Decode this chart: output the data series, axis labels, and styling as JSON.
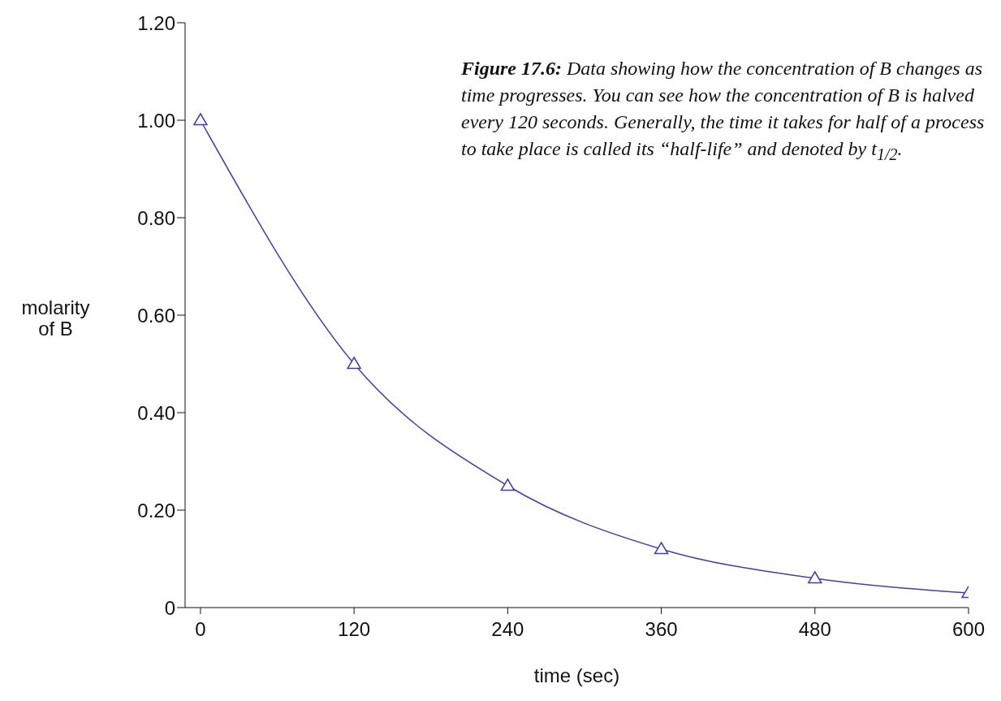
{
  "chart_data": {
    "type": "line",
    "xlabel": "time (sec)",
    "ylabel": "molarity of B",
    "annotations": [
      "Figure 17.6:",
      "Data showing how the concentration of B changes as time progresses.  You can see how the concentration of B is halved every 120 seconds.  Generally, the time it takes for half of a process to take place is called its “half-life” and denoted by t$_{1/2}$."
    ],
    "x": [
      0,
      120,
      240,
      360,
      480,
      600
    ],
    "series": [
      {
        "color": "#3f3fae",
        "values": [
          1.0,
          0.5,
          0.25,
          0.12,
          0.06,
          0.03
        ]
      }
    ],
    "xlim": [
      -12,
      600
    ],
    "xticks": [
      0,
      120,
      240,
      360,
      480,
      600
    ],
    "ylim": [
      0,
      1.2
    ],
    "yticks": [
      0,
      {
        "value": 0.2,
        "label": "0.20"
      },
      {
        "value": 0.4,
        "label": "0.40"
      },
      {
        "value": 0.6,
        "label": "0.60"
      },
      {
        "value": 0.8,
        "label": "0.80"
      },
      {
        "value": 1.0,
        "label": "1.00"
      },
      {
        "value": 1.2,
        "label": "1.20"
      }
    ],
    "marker": "triangle",
    "line_style": "solid"
  }
}
